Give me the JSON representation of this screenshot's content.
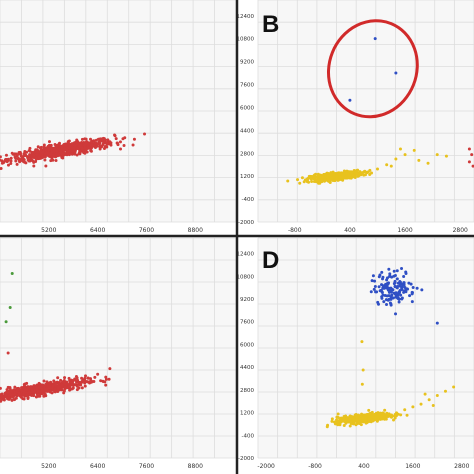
{
  "colors": {
    "red": "#cf3a3a",
    "yellow": "#e8c21e",
    "blue": "#2f4fc4",
    "green": "#4a9a3a",
    "ellipse": "#d12a2a",
    "grid": "#dddddd",
    "divider": "#222222",
    "panel_bg": "#f7f7f7"
  },
  "chart_data": [
    {
      "type": "scatter",
      "panel_label": "",
      "x_ticks": [
        "5200",
        "6400",
        "7600",
        "8800"
      ],
      "y_ticks": [],
      "x_range": [
        4000,
        9800
      ],
      "y_range": [
        -2000,
        13500
      ],
      "grid": true,
      "series": [
        {
          "color": "red",
          "cluster": {
            "cx": 5500,
            "cy": 3000,
            "sx": 650,
            "sy": 380,
            "corr": 0.8,
            "n": 700
          },
          "points": [
            [
              6900,
              3400
            ],
            [
              6700,
              3600
            ],
            [
              4300,
              2800
            ]
          ]
        }
      ]
    },
    {
      "type": "scatter",
      "panel_label": "B",
      "x_ticks": [
        "-800",
        "400",
        "1600",
        "2800"
      ],
      "y_ticks": [
        "12400",
        "10800",
        "9200",
        "7600",
        "6000",
        "4400",
        "2800",
        "1200",
        "-400",
        "-2000"
      ],
      "x_range": [
        -1600,
        3100
      ],
      "y_range": [
        -2000,
        13500
      ],
      "grid": true,
      "series": [
        {
          "color": "yellow",
          "cluster": {
            "cx": 100,
            "cy": 1200,
            "sx": 280,
            "sy": 160,
            "corr": 0.6,
            "n": 480
          },
          "points": [
            [
              800,
              1500
            ],
            [
              1000,
              1700
            ],
            [
              1200,
              2000
            ],
            [
              1400,
              2400
            ],
            [
              1600,
              2700
            ],
            [
              1800,
              3000
            ],
            [
              1900,
              2300
            ],
            [
              2100,
              2100
            ],
            [
              2300,
              2700
            ],
            [
              1500,
              3100
            ],
            [
              1300,
              1900
            ],
            [
              2500,
              2600
            ]
          ]
        },
        {
          "color": "red",
          "cluster": null,
          "points": [
            [
              3000,
              3100
            ],
            [
              3050,
              2700
            ],
            [
              3000,
              2200
            ],
            [
              3080,
              1900
            ]
          ]
        },
        {
          "color": "blue",
          "cluster": null,
          "points": [
            [
              950,
              10800
            ],
            [
              1400,
              8400
            ],
            [
              400,
              6500
            ]
          ]
        }
      ],
      "annotation": {
        "type": "ellipse",
        "color": "ellipse",
        "cx": 900,
        "cy": 8700,
        "rx": 950,
        "ry": 3400
      }
    },
    {
      "type": "scatter",
      "panel_label": "",
      "x_ticks": [
        "5200",
        "6400",
        "7600",
        "8800"
      ],
      "y_ticks": [],
      "x_range": [
        4000,
        9800
      ],
      "y_range": [
        -2000,
        13500
      ],
      "grid": true,
      "series": [
        {
          "color": "red",
          "cluster": {
            "cx": 4900,
            "cy": 2800,
            "sx": 600,
            "sy": 350,
            "corr": 0.8,
            "n": 700
          },
          "points": [
            [
              6400,
              3900
            ],
            [
              6700,
              4300
            ],
            [
              6600,
              3700
            ],
            [
              4200,
              5400
            ]
          ]
        },
        {
          "color": "green",
          "cluster": null,
          "points": [
            [
              4300,
              11000
            ],
            [
              4150,
              7600
            ],
            [
              4250,
              8600
            ]
          ]
        }
      ]
    },
    {
      "type": "scatter",
      "panel_label": "D",
      "x_ticks": [
        "-2000",
        "-800",
        "400",
        "1600",
        "2800"
      ],
      "y_ticks": [
        "12400",
        "10800",
        "9200",
        "7600",
        "6000",
        "4400",
        "2800",
        "1200",
        "-400",
        "-2000"
      ],
      "x_range": [
        -2200,
        3100
      ],
      "y_range": [
        -2000,
        13500
      ],
      "grid": true,
      "series": [
        {
          "color": "yellow",
          "cluster": {
            "cx": 400,
            "cy": 800,
            "sx": 320,
            "sy": 180,
            "corr": 0.6,
            "n": 520
          },
          "points": [
            [
              1400,
              1400
            ],
            [
              1600,
              1600
            ],
            [
              1800,
              1800
            ],
            [
              2000,
              2100
            ],
            [
              2200,
              2400
            ],
            [
              2400,
              2700
            ],
            [
              2600,
              3000
            ],
            [
              2100,
              1700
            ],
            [
              1900,
              2500
            ],
            [
              -300,
              400
            ],
            [
              -500,
              200
            ]
          ]
        },
        {
          "color": "blue",
          "cluster": {
            "cx": 1150,
            "cy": 10000,
            "sx": 260,
            "sy": 600,
            "corr": 0.0,
            "n": 140
          },
          "points": [
            [
              2200,
              7500
            ],
            [
              600,
              10500
            ]
          ]
        },
        {
          "color": "yellow",
          "cluster": null,
          "points": [
            [
              350,
              6200
            ],
            [
              380,
              4200
            ],
            [
              360,
              3200
            ]
          ]
        }
      ]
    }
  ]
}
